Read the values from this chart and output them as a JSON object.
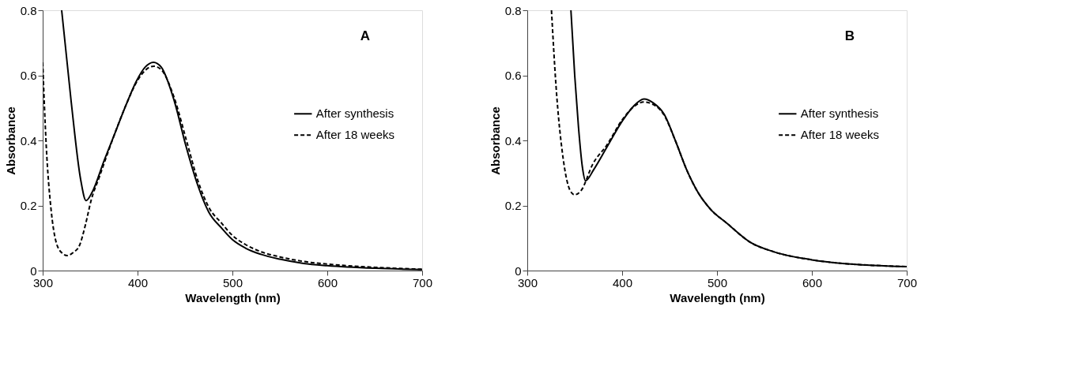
{
  "chart_data": [
    {
      "type": "line",
      "xlabel": "Wavelength (nm)",
      "ylabel": "Absorbance",
      "annotations": [
        "A"
      ],
      "xlim": [
        300,
        700
      ],
      "xticks": [
        300,
        400,
        500,
        600,
        700
      ],
      "ylim": [
        0,
        0.8
      ],
      "yticks": [
        0,
        0.2,
        0.4,
        0.6,
        0.8
      ],
      "grid": false,
      "legend": "right",
      "marker": "none",
      "series": [
        {
          "name": "After synthesis",
          "color": "#000000",
          "line_style": "solid",
          "x": [
            320,
            330,
            340,
            345.7,
            352,
            365,
            376,
            388,
            398.75,
            408,
            416.75,
            425,
            438.75,
            451,
            463.75,
            475,
            488.75,
            500,
            513.75,
            530,
            550,
            575,
            600,
            650,
            700
          ],
          "values": [
            0.8,
            0.52,
            0.28,
            0.215,
            0.24,
            0.34,
            0.421,
            0.51,
            0.582,
            0.625,
            0.64,
            0.625,
            0.521,
            0.383,
            0.26,
            0.18,
            0.13,
            0.095,
            0.069,
            0.05,
            0.035,
            0.022,
            0.015,
            0.007,
            0.003
          ]
        },
        {
          "name": "After 18 weeks",
          "color": "#000000",
          "line_style": "dashed",
          "x": [
            300,
            303.75,
            308.75,
            313.75,
            320,
            326,
            332,
            338.75,
            345,
            351,
            360,
            376,
            388,
            398.75,
            408,
            417,
            425,
            438.75,
            452,
            463.75,
            475,
            488.75,
            500,
            513.75,
            530,
            550,
            575,
            600,
            650,
            700
          ],
          "values": [
            0.64,
            0.383,
            0.19,
            0.092,
            0.055,
            0.046,
            0.055,
            0.077,
            0.14,
            0.215,
            0.29,
            0.421,
            0.51,
            0.578,
            0.615,
            0.628,
            0.617,
            0.53,
            0.395,
            0.275,
            0.195,
            0.145,
            0.108,
            0.08,
            0.058,
            0.042,
            0.028,
            0.02,
            0.01,
            0.004
          ]
        }
      ]
    },
    {
      "type": "line",
      "xlabel": "Wavelength (nm)",
      "ylabel": "Absorbance",
      "annotations": [
        "B"
      ],
      "xlim": [
        300,
        700
      ],
      "xticks": [
        300,
        400,
        500,
        600,
        700
      ],
      "ylim": [
        0,
        0.8
      ],
      "yticks": [
        0,
        0.2,
        0.4,
        0.6,
        0.8
      ],
      "grid": false,
      "legend": "right",
      "marker": "none",
      "series": [
        {
          "name": "After synthesis",
          "color": "#000000",
          "line_style": "solid",
          "x": [
            346,
            350,
            354,
            358,
            361.4,
            370,
            383.7,
            400.7,
            412,
            423,
            433,
            444.4,
            456,
            468.7,
            480,
            493,
            510.6,
            535,
            559.5,
            600,
            632,
            665,
            700
          ],
          "values": [
            0.8,
            0.6,
            0.44,
            0.32,
            0.276,
            0.31,
            0.378,
            0.462,
            0.505,
            0.527,
            0.515,
            0.48,
            0.4,
            0.305,
            0.24,
            0.189,
            0.145,
            0.087,
            0.058,
            0.033,
            0.022,
            0.016,
            0.012
          ]
        },
        {
          "name": "After 18 weeks",
          "color": "#000000",
          "line_style": "dashed",
          "x": [
            325.5,
            330.3,
            337.6,
            345,
            349.8,
            357,
            369,
            383.7,
            400.7,
            412,
            423,
            433,
            444.4,
            456,
            468.7,
            480,
            493,
            510.6,
            535,
            559.5,
            600,
            632,
            665,
            700
          ],
          "values": [
            0.8,
            0.567,
            0.349,
            0.247,
            0.233,
            0.247,
            0.327,
            0.385,
            0.466,
            0.503,
            0.518,
            0.51,
            0.477,
            0.4,
            0.305,
            0.24,
            0.189,
            0.145,
            0.087,
            0.058,
            0.033,
            0.022,
            0.016,
            0.012
          ]
        }
      ]
    }
  ]
}
